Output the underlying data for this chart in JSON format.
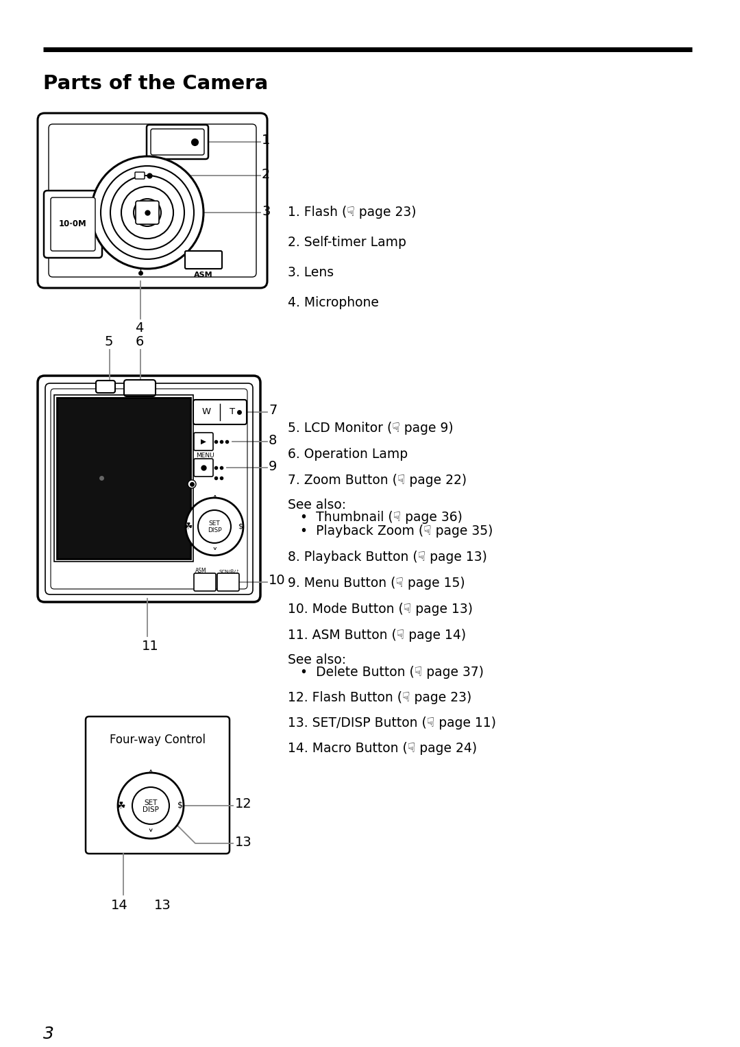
{
  "title": "Parts of the Camera",
  "bg_color": "#ffffff",
  "text_color": "#000000",
  "page_number": "3",
  "front_labels": [
    "1. Flash (☟ page 23)",
    "2. Self-timer Lamp",
    "3. Lens",
    "4. Microphone"
  ],
  "back_labels": [
    "5. LCD Monitor (☟ page 9)",
    "6. Operation Lamp",
    "7. Zoom Button (☟ page 22)",
    "See also:",
    "•  Thumbnail (☟ page 36)",
    "•  Playback Zoom (☟ page 35)",
    "8. Playback Button (☟ page 13)",
    "9. Menu Button (☟ page 15)",
    "10. Mode Button (☟ page 13)",
    "11. ASM Button (☟ page 14)",
    "See also:",
    "•  Delete Button (☟ page 37)",
    "12. Flash Button (☟ page 23)",
    "13. SET/DISP Button (☟ page 11)",
    "14. Macro Button (☟ page 24)"
  ],
  "back_label_indents": [
    0,
    0,
    0,
    0,
    18,
    18,
    0,
    0,
    0,
    0,
    0,
    18,
    0,
    0,
    0
  ]
}
